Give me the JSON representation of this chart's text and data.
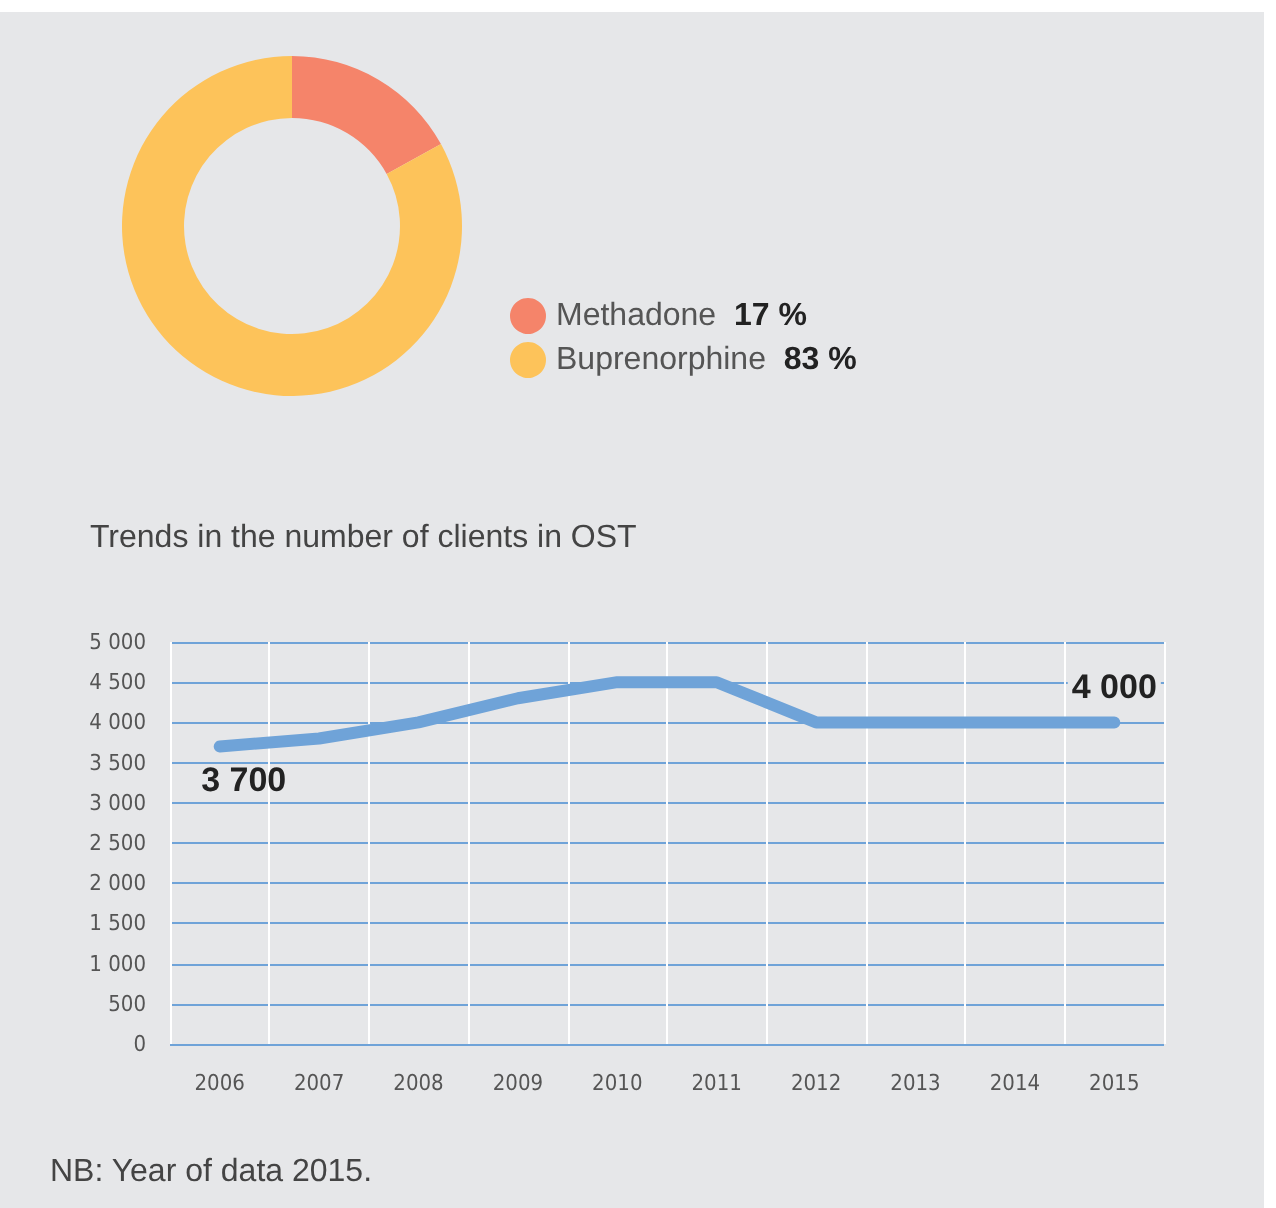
{
  "chart_data": [
    {
      "type": "donut",
      "categories": [
        "Methadone",
        "Buprenorphine"
      ],
      "values": [
        17,
        83
      ],
      "colors": [
        "#f5846a",
        "#fdc35a"
      ],
      "value_labels": [
        "17 %",
        "83 %"
      ],
      "legend": "right"
    },
    {
      "type": "line",
      "title": "Trends in the number of clients in OST",
      "categories": [
        "2006",
        "2007",
        "2008",
        "2009",
        "2010",
        "2011",
        "2012",
        "2013",
        "2014",
        "2015"
      ],
      "series": [
        {
          "color": "#6fa3d8",
          "values": [
            3700,
            3800,
            4000,
            4300,
            4500,
            4500,
            4000,
            4000,
            4000,
            4000
          ],
          "value_labels": [
            "3 700",
            null,
            null,
            null,
            null,
            null,
            null,
            null,
            null,
            "4 000"
          ]
        }
      ],
      "ylim": [
        0,
        5000
      ],
      "yticks": [
        {
          "value": 0,
          "label": "0"
        },
        {
          "value": 500,
          "label": "500"
        },
        {
          "value": 1000,
          "label": "1 000"
        },
        {
          "value": 1500,
          "label": "1 500"
        },
        {
          "value": 2000,
          "label": "2 000"
        },
        {
          "value": 2500,
          "label": "2 500"
        },
        {
          "value": 3000,
          "label": "3 000"
        },
        {
          "value": 3500,
          "label": "3 500"
        },
        {
          "value": 4000,
          "label": "4 000"
        },
        {
          "value": 4500,
          "label": "4 500"
        },
        {
          "value": 5000,
          "label": "5 000"
        }
      ],
      "grid": true,
      "marker": "none",
      "line_style": "solid",
      "legend": false,
      "annotations": [
        "NB: Year of data 2015."
      ]
    }
  ]
}
